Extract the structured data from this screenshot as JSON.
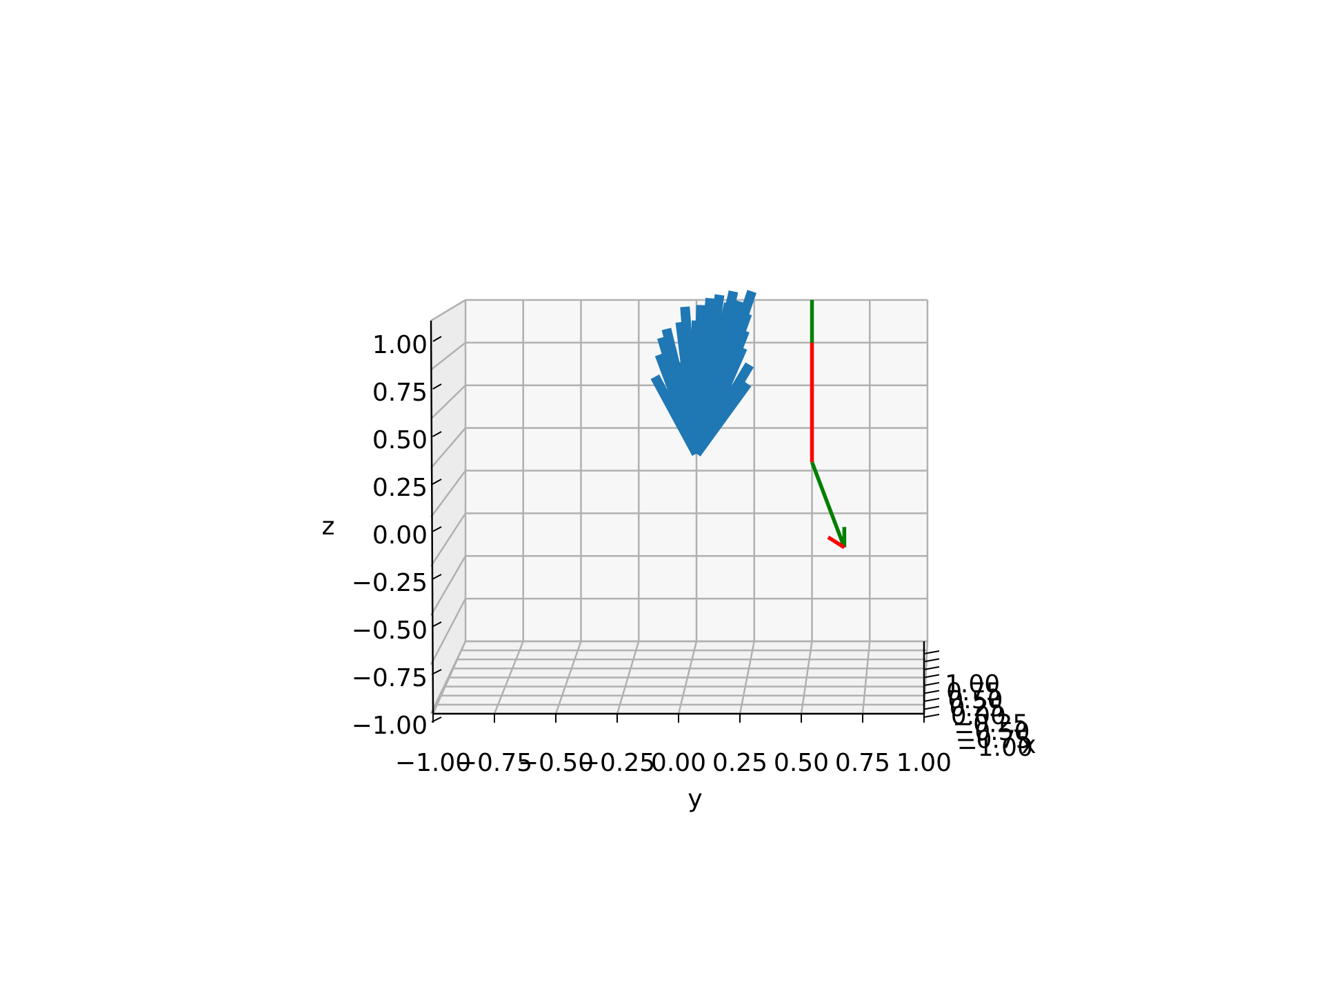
{
  "chart_data": {
    "type": "3d-line",
    "title": "",
    "xlabel": "x",
    "ylabel": "y",
    "zlabel": "z",
    "xlim": [
      -1,
      1
    ],
    "ylim": [
      -1,
      1
    ],
    "zlim": [
      -1,
      1
    ],
    "grid": true,
    "y_ticks": [
      "−1.00",
      "−0.75",
      "−0.50",
      "−0.25",
      "0.00",
      "0.25",
      "0.50",
      "0.75",
      "1.00"
    ],
    "z_ticks": [
      "−1.00",
      "−0.75",
      "−0.50",
      "−0.25",
      "0.00",
      "0.25",
      "0.50",
      "0.75",
      "1.00"
    ],
    "x_ticks": [
      "1.00",
      "0.75",
      "0.50",
      "0.25",
      "0.00",
      "−0.25",
      "−0.50",
      "−0.75",
      "−1.00"
    ],
    "colors": {
      "bundle": "#1f77b4",
      "red": "#ff0000",
      "green": "#008000",
      "pane": "#f7f7f7",
      "grid": "#b0b0b0"
    },
    "bundle_origin": [
      0.0,
      0.1
    ],
    "bundle_ends": [
      [
        -0.18,
        0.55
      ],
      [
        -0.16,
        0.68
      ],
      [
        -0.15,
        0.78
      ],
      [
        -0.13,
        0.83
      ],
      [
        -0.11,
        0.72
      ],
      [
        -0.09,
        0.63
      ],
      [
        -0.07,
        0.87
      ],
      [
        -0.05,
        0.96
      ],
      [
        -0.03,
        0.78
      ],
      [
        0.0,
        0.88
      ],
      [
        0.02,
        0.97
      ],
      [
        0.04,
        0.84
      ],
      [
        0.06,
        1.01
      ],
      [
        0.08,
        0.93
      ],
      [
        0.1,
        1.03
      ],
      [
        0.12,
        0.89
      ],
      [
        0.14,
        0.98
      ],
      [
        0.16,
        1.05
      ],
      [
        0.18,
        0.86
      ],
      [
        0.19,
        0.99
      ],
      [
        0.2,
        0.72
      ],
      [
        0.21,
        0.82
      ],
      [
        0.22,
        0.92
      ],
      [
        0.24,
        1.05
      ],
      [
        0.23,
        0.62
      ],
      [
        0.22,
        0.51
      ],
      [
        0.15,
        0.62
      ],
      [
        0.09,
        0.74
      ],
      [
        -0.12,
        0.6
      ],
      [
        -0.06,
        0.5
      ],
      [
        0.05,
        0.55
      ],
      [
        0.12,
        0.45
      ],
      [
        -0.1,
        0.4
      ],
      [
        0.08,
        0.38
      ]
    ],
    "frame_segments": [
      {
        "color": "red",
        "points": [
          [
            0.5,
            0.05
          ],
          [
            0.5,
            0.75
          ]
        ]
      },
      {
        "color": "green",
        "points": [
          [
            0.5,
            0.75
          ],
          [
            0.5,
            1.0
          ]
        ]
      },
      {
        "color": "green",
        "points": [
          [
            0.5,
            0.05
          ],
          [
            0.64,
            -0.45
          ]
        ]
      },
      {
        "color": "green",
        "points": [
          [
            0.64,
            -0.45
          ],
          [
            0.64,
            -0.33
          ]
        ]
      },
      {
        "color": "red",
        "points": [
          [
            0.64,
            -0.45
          ],
          [
            0.57,
            -0.39
          ]
        ]
      }
    ]
  }
}
